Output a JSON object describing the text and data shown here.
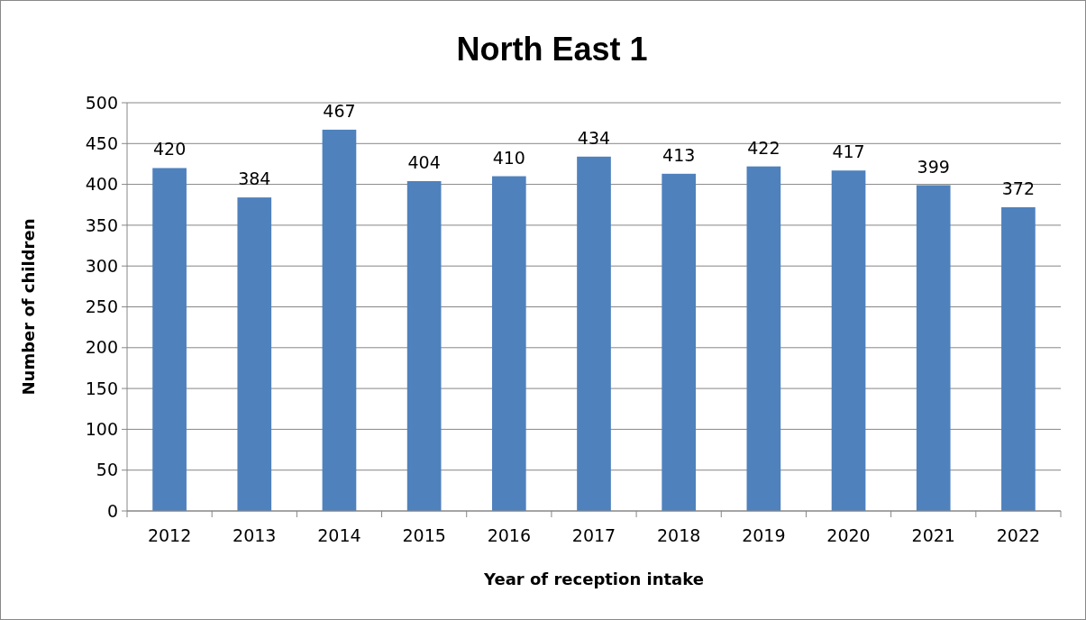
{
  "chart_data": {
    "type": "bar",
    "title": "North East 1",
    "xlabel": "Year of reception intake",
    "ylabel": "Number of children",
    "categories": [
      "2012",
      "2013",
      "2014",
      "2015",
      "2016",
      "2017",
      "2018",
      "2019",
      "2020",
      "2021",
      "2022"
    ],
    "values": [
      420,
      384,
      467,
      404,
      410,
      434,
      413,
      422,
      417,
      399,
      372
    ],
    "color": "#4f81bd",
    "ylim": [
      0,
      500
    ],
    "yticks": [
      0,
      50,
      100,
      150,
      200,
      250,
      300,
      350,
      400,
      450,
      500
    ],
    "grid": "y",
    "data_labels": true
  }
}
